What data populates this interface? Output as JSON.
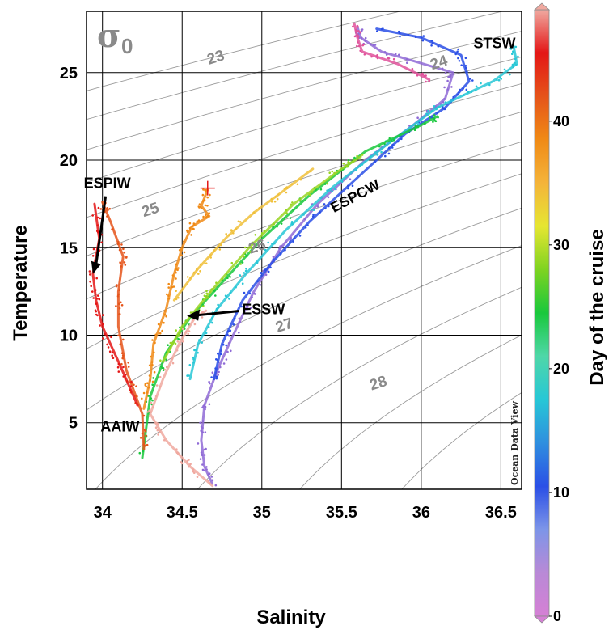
{
  "chart_data": {
    "type": "scatter",
    "title": "",
    "xlabel": "Salinity",
    "ylabel": "Temperature",
    "xlim": [
      33.9,
      36.63
    ],
    "ylim": [
      1.2,
      28.5
    ],
    "x_ticks": [
      "34",
      "34.5",
      "35",
      "35.5",
      "36",
      "36.5"
    ],
    "y_ticks": [
      "5",
      "10",
      "15",
      "20",
      "25"
    ],
    "grid": true,
    "isopycnal_symbol": "σ",
    "isopycnal_subscript": "0",
    "isopycnal_labels": [
      {
        "value": "23",
        "x": 34.72,
        "y": 25.6
      },
      {
        "value": "24",
        "x": 36.12,
        "y": 25.3
      },
      {
        "value": "25",
        "x": 34.31,
        "y": 16.9
      },
      {
        "value": "26",
        "x": 34.98,
        "y": 14.8
      },
      {
        "value": "27",
        "x": 35.15,
        "y": 10.3
      },
      {
        "value": "28",
        "x": 35.74,
        "y": 7.0
      }
    ],
    "water_masses": [
      {
        "name": "STSW",
        "x": 36.46,
        "y": 26.4
      },
      {
        "name": "ESPCW",
        "x": 35.6,
        "y": 17.7
      },
      {
        "name": "ESPIW",
        "x": 34.03,
        "y": 18.4
      },
      {
        "name": "ESSW",
        "x": 35.01,
        "y": 11.2
      },
      {
        "name": "AAIW",
        "x": 34.11,
        "y": 4.5
      }
    ],
    "colorbar": {
      "label": "Day of the cruise",
      "min": 0,
      "max": 49,
      "ticks": [
        "0",
        "10",
        "20",
        "30",
        "40"
      ],
      "colors": [
        "#d580d5",
        "#b989d6",
        "#7d95e8",
        "#2a4fe6",
        "#2f8fdf",
        "#27c7d6",
        "#4fd7a8",
        "#19c83c",
        "#7ed321",
        "#e6e632",
        "#f4b43a",
        "#f08a16",
        "#e5541a",
        "#e41616",
        "#f0a9a0"
      ]
    },
    "watermark": "Ocean Data View",
    "series": [
      {
        "color": "#8f6ad6",
        "points": [
          [
            34.69,
            1.5
          ],
          [
            34.64,
            2.5
          ],
          [
            34.62,
            4.0
          ],
          [
            34.64,
            6.0
          ],
          [
            34.72,
            8.0
          ],
          [
            34.82,
            10.0
          ],
          [
            34.95,
            12.5
          ],
          [
            35.12,
            15.0
          ],
          [
            35.35,
            17.5
          ],
          [
            35.65,
            20.0
          ],
          [
            35.95,
            22.0
          ],
          [
            36.15,
            23.5
          ],
          [
            36.2,
            25.0
          ],
          [
            35.75,
            26.2
          ],
          [
            35.62,
            27.0
          ],
          [
            35.6,
            27.6
          ]
        ]
      },
      {
        "color": "#2a4fe6",
        "points": [
          [
            34.7,
            7.5
          ],
          [
            34.75,
            9.5
          ],
          [
            34.88,
            12.0
          ],
          [
            35.05,
            14.0
          ],
          [
            35.3,
            16.5
          ],
          [
            35.6,
            19.0
          ],
          [
            35.9,
            21.5
          ],
          [
            36.15,
            23.0
          ],
          [
            36.3,
            24.5
          ],
          [
            36.25,
            26.0
          ],
          [
            36.0,
            27.0
          ],
          [
            35.72,
            27.5
          ]
        ]
      },
      {
        "color": "#27c7d6",
        "points": [
          [
            34.55,
            7.5
          ],
          [
            34.6,
            9.5
          ],
          [
            34.72,
            11.5
          ],
          [
            34.9,
            13.5
          ],
          [
            35.15,
            16.0
          ],
          [
            35.45,
            18.5
          ],
          [
            35.8,
            21.0
          ],
          [
            36.1,
            23.0
          ],
          [
            36.45,
            24.5
          ],
          [
            36.6,
            25.5
          ],
          [
            36.58,
            26.5
          ]
        ]
      },
      {
        "color": "#19c83c",
        "points": [
          [
            34.25,
            3.0
          ],
          [
            34.3,
            6.5
          ],
          [
            34.4,
            9.0
          ],
          [
            34.55,
            11.0
          ],
          [
            34.75,
            13.0
          ],
          [
            35.0,
            15.5
          ],
          [
            35.3,
            18.0
          ],
          [
            35.65,
            20.5
          ],
          [
            36.0,
            22.0
          ],
          [
            36.1,
            22.5
          ]
        ]
      },
      {
        "color": "#9ad523",
        "points": [
          [
            34.38,
            8.5
          ],
          [
            34.5,
            10.5
          ],
          [
            34.68,
            12.5
          ],
          [
            34.92,
            15.0
          ],
          [
            35.2,
            17.5
          ],
          [
            35.5,
            19.5
          ],
          [
            35.62,
            20.2
          ]
        ]
      },
      {
        "color": "#f0c03a",
        "points": [
          [
            34.45,
            12.0
          ],
          [
            34.6,
            13.8
          ],
          [
            34.78,
            15.6
          ],
          [
            34.95,
            17.0
          ],
          [
            35.1,
            18.0
          ],
          [
            35.32,
            19.5
          ]
        ]
      },
      {
        "color": "#f08a16",
        "points": [
          [
            34.26,
            5.8
          ],
          [
            34.3,
            7.5
          ],
          [
            34.32,
            9.5
          ],
          [
            34.4,
            11.5
          ],
          [
            34.45,
            13.5
          ],
          [
            34.5,
            15.0
          ],
          [
            34.56,
            16.2
          ],
          [
            34.67,
            16.8
          ],
          [
            34.62,
            17.4
          ],
          [
            34.66,
            18.3
          ]
        ]
      },
      {
        "color": "#e5541a",
        "points": [
          [
            34.26,
            3.5
          ],
          [
            34.25,
            5.5
          ],
          [
            34.15,
            8.0
          ],
          [
            34.1,
            10.5
          ],
          [
            34.1,
            12.5
          ],
          [
            34.13,
            14.5
          ],
          [
            34.05,
            16.5
          ],
          [
            34.0,
            17.6
          ]
        ]
      },
      {
        "color": "#e41616",
        "points": [
          [
            34.22,
            6.0
          ],
          [
            34.1,
            8.5
          ],
          [
            34.0,
            10.5
          ],
          [
            33.96,
            12.0
          ],
          [
            33.94,
            13.5
          ],
          [
            33.98,
            15.5
          ],
          [
            33.95,
            17.5
          ]
        ]
      },
      {
        "color": "#f0a9a0",
        "points": [
          [
            34.69,
            1.4
          ],
          [
            34.55,
            2.5
          ],
          [
            34.4,
            4.0
          ],
          [
            34.3,
            5.5
          ],
          [
            34.38,
            7.5
          ],
          [
            34.48,
            9.5
          ],
          [
            34.58,
            11.0
          ],
          [
            34.65,
            11.4
          ]
        ]
      },
      {
        "color": "#e0529b",
        "points": [
          [
            35.58,
            27.8
          ],
          [
            35.6,
            27.0
          ],
          [
            35.63,
            26.2
          ],
          [
            35.85,
            25.5
          ],
          [
            36.05,
            24.6
          ]
        ]
      }
    ]
  }
}
